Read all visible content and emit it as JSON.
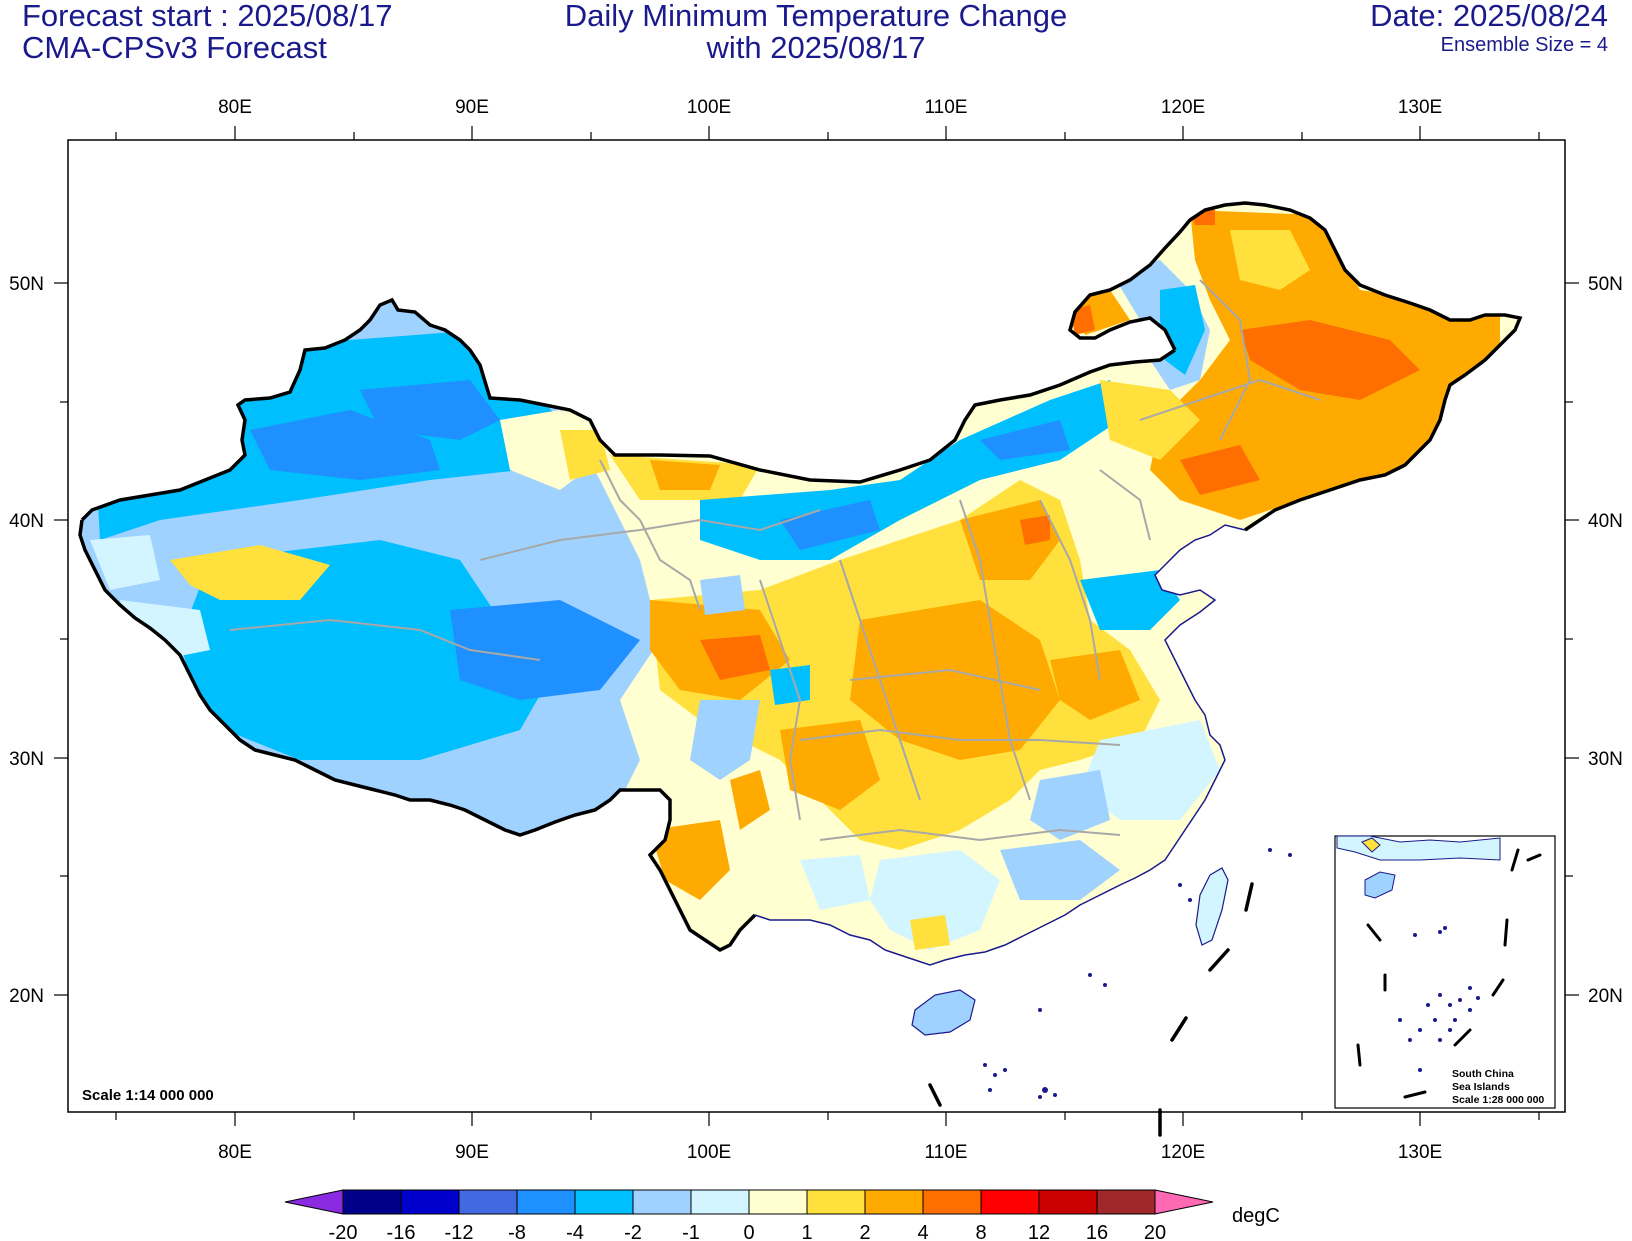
{
  "header": {
    "forecast_start": "Forecast start : 2025/08/17",
    "model": "CMA-CPSv3 Forecast",
    "title_line1": "Daily Minimum Temperature Change",
    "title_line2": "with 2025/08/17",
    "date": "Date: 2025/08/24",
    "ensemble": "Ensemble Size = 4"
  },
  "axes": {
    "lon_labels": [
      "80E",
      "90E",
      "100E",
      "110E",
      "120E",
      "130E"
    ],
    "lat_labels": [
      "50N",
      "40N",
      "30N",
      "20N"
    ]
  },
  "map": {
    "scale_text": "Scale 1:14 000 000",
    "inset_title_1": "South China",
    "inset_title_2": "Sea Islands",
    "inset_scale": "Scale 1:28 000 000"
  },
  "colorbar": {
    "unit": "degC",
    "labels": [
      "-20",
      "-16",
      "-12",
      "-8",
      "-4",
      "-2",
      "-1",
      "0",
      "1",
      "2",
      "4",
      "8",
      "12",
      "16",
      "20"
    ],
    "colors": [
      "#8a2be2",
      "#00008b",
      "#0000cd",
      "#4169e1",
      "#1e90ff",
      "#00bfff",
      "#a0d2ff",
      "#d2f5ff",
      "#ffffd2",
      "#ffe03c",
      "#ffaa00",
      "#ff6e00",
      "#ff0000",
      "#c80000",
      "#a02828",
      "#ff69b4"
    ]
  },
  "colors": {
    "cold_strong": "#1e90ff",
    "cold": "#00bfff",
    "cool": "#a0d2ff",
    "cool_light": "#d2f5ff",
    "warm_light": "#ffffd2",
    "warm": "#ffe03c",
    "warm_strong": "#ffaa00",
    "hot": "#ff6e00"
  }
}
